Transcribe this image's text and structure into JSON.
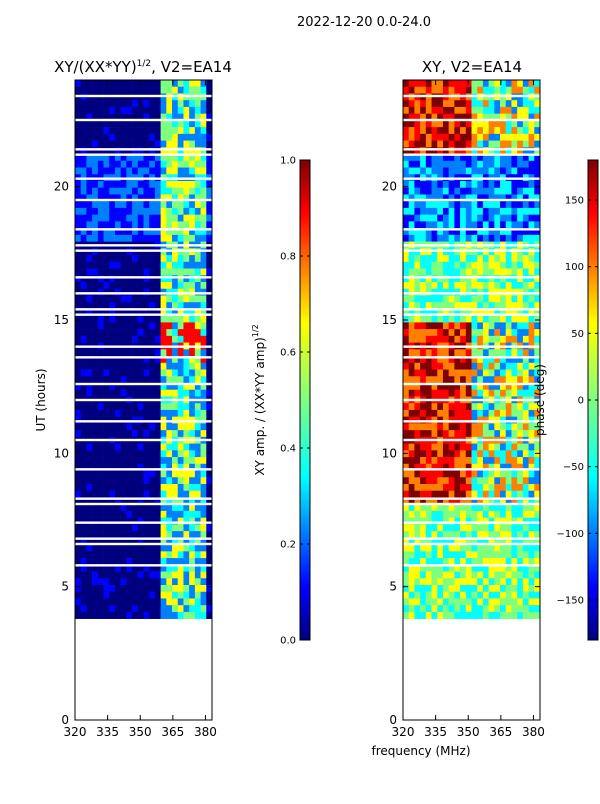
{
  "suptitle": "2022-12-20 0.0-24.0",
  "shared_xlabel": "frequency (MHz)",
  "colors": {
    "jet": [
      "#00007f",
      "#0000ff",
      "#007fff",
      "#00ffff",
      "#7fff7f",
      "#ffff00",
      "#ff7f00",
      "#ff0000",
      "#7f0000"
    ],
    "bg": "#00008c",
    "gap": "#ffffff"
  },
  "chart_data": [
    {
      "type": "heatmap",
      "title": "XY/(XX*YY)",
      "title_sup": "1/2",
      "title_suffix": ", V2=EA14",
      "ylabel": "UT (hours)",
      "xlabel": "",
      "xlim": [
        320,
        383
      ],
      "ylim": [
        0,
        24
      ],
      "xticks": [
        "320",
        "335",
        "350",
        "365",
        "380"
      ],
      "xtick_values": [
        320,
        335,
        350,
        365,
        380
      ],
      "yticks": [
        "0",
        "5",
        "10",
        "15",
        "20"
      ],
      "ytick_values": [
        0,
        5,
        10,
        15,
        20
      ],
      "data_range_hours": [
        3.8,
        24.0
      ],
      "active_band_mhz": [
        360,
        380
      ],
      "colorbar": {
        "label": "XY amp. / (XX*YY amp)",
        "label_sup": "1/2",
        "range": [
          0.0,
          1.0
        ],
        "ticks": [
          "0.0",
          "0.2",
          "0.4",
          "0.6",
          "0.8",
          "1.0"
        ],
        "tick_values": [
          0.0,
          0.2,
          0.4,
          0.6,
          0.8,
          1.0
        ]
      }
    },
    {
      "type": "heatmap",
      "title": "XY, V2=EA14",
      "ylabel": "phase (deg)",
      "xlabel": "frequency (MHz)",
      "xlim": [
        320,
        383
      ],
      "ylim": [
        0,
        24
      ],
      "xticks": [
        "320",
        "335",
        "350",
        "365",
        "380"
      ],
      "xtick_values": [
        320,
        335,
        350,
        365,
        380
      ],
      "yticks": [
        "0",
        "5",
        "10",
        "15",
        "20"
      ],
      "ytick_values": [
        0,
        5,
        10,
        15,
        20
      ],
      "data_range_hours": [
        3.8,
        24.0
      ],
      "colorbar": {
        "label": "phase (deg)",
        "range": [
          -180,
          180
        ],
        "ticks": [
          "−150",
          "−100",
          "−50",
          "0",
          "50",
          "100",
          "150"
        ],
        "tick_values": [
          -150,
          -100,
          -50,
          0,
          50,
          100,
          150
        ]
      }
    }
  ],
  "gaps_hours": [
    23.4,
    22.5,
    21.4,
    21.2,
    20.3,
    19.5,
    18.4,
    17.8,
    17.6,
    16.6,
    16.0,
    15.4,
    15.2,
    14.0,
    13.6,
    12.6,
    12.0,
    11.2,
    10.5,
    9.4,
    8.3,
    8.1,
    7.4,
    6.8,
    6.6,
    5.8
  ]
}
